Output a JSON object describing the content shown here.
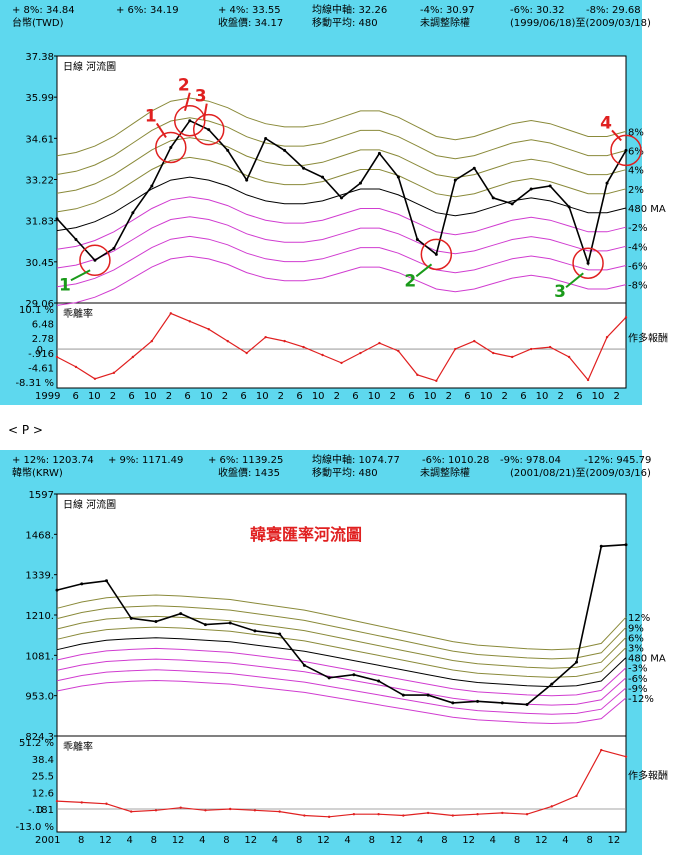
{
  "separator": "< P >",
  "charts": [
    {
      "header_row1": [
        {
          "label": "+ 8%:",
          "value": "34.84"
        },
        {
          "label": "+ 6%:",
          "value": "34.19"
        },
        {
          "label": "+ 4%:",
          "value": "33.55"
        },
        {
          "label": "均線中軸:",
          "value": "32.26"
        },
        {
          "label": "-4%:",
          "value": "30.97"
        },
        {
          "label": "-6%:",
          "value": "30.32"
        },
        {
          "label": "-8%:",
          "value": "29.68"
        }
      ],
      "header_row2": {
        "currency": "台幣(TWD)",
        "close_label": "收盤價:",
        "close_value": "34.17",
        "ma_label": "移動平均:",
        "ma_value": "480",
        "adjust": "未調整除權",
        "period": "(1999/06/18)至(2009/03/18)"
      },
      "panel_label": "日線 河流圖",
      "title": "",
      "ratio_label": "乖離率",
      "right_label": "作多報酬",
      "y_ticks": [
        "37.38",
        "35.99",
        "34.61",
        "33.22",
        "31.83",
        "30.45",
        "29.06"
      ],
      "ratio_ticks": [
        "10.1 %",
        "6.48",
        "2.78",
        "-.916",
        "-4.61",
        "-8.31 %"
      ],
      "zero_tick": "0",
      "x_ticks": [
        "1999",
        "6",
        "10",
        "2",
        "6",
        "10",
        "2",
        "6",
        "10",
        "2",
        "6",
        "10",
        "2",
        "6",
        "10",
        "2",
        "6",
        "10",
        "2",
        "6",
        "10",
        "2",
        "6",
        "10",
        "2",
        "6",
        "10",
        "2",
        "6",
        "10",
        "2"
      ],
      "band_labels": [
        "8%",
        "6%",
        "4%",
        "2%",
        "480 MA",
        "-2%",
        "-4%",
        "-6%",
        "-8%"
      ],
      "annotations": [
        {
          "text": "1",
          "color": "#e02020"
        },
        {
          "text": "2",
          "color": "#e02020"
        },
        {
          "text": "3",
          "color": "#e02020"
        },
        {
          "text": "4",
          "color": "#e02020"
        },
        {
          "text": "1",
          "color": "#1a9a1a"
        },
        {
          "text": "2",
          "color": "#1a9a1a"
        },
        {
          "text": "3",
          "color": "#1a9a1a"
        }
      ],
      "chart_data": {
        "type": "line",
        "title": "",
        "series": [
          {
            "name": "收盤價",
            "x": [
              "1999/06",
              "1999/10",
              "2000/02",
              "2000/06",
              "2000/10",
              "2001/02",
              "2001/06",
              "2001/10",
              "2002/02",
              "2002/06",
              "2002/10",
              "2003/02",
              "2003/06",
              "2003/10",
              "2004/02",
              "2004/06",
              "2004/10",
              "2005/02",
              "2005/06",
              "2005/10",
              "2006/02",
              "2006/06",
              "2006/10",
              "2007/02",
              "2007/06",
              "2007/10",
              "2008/02",
              "2008/06",
              "2008/10",
              "2009/02",
              "2009/03"
            ],
            "values": [
              31.9,
              31.2,
              30.5,
              30.9,
              32.1,
              33.0,
              34.3,
              35.2,
              34.9,
              34.2,
              33.2,
              34.6,
              34.2,
              33.6,
              33.3,
              32.6,
              33.1,
              34.1,
              33.3,
              31.2,
              30.7,
              33.2,
              33.6,
              32.6,
              32.4,
              32.9,
              33.0,
              32.3,
              30.4,
              33.1,
              34.2
            ]
          },
          {
            "name": "乖離率",
            "values": [
              -2.0,
              -4.5,
              -7.5,
              -6.0,
              -2.0,
              2.0,
              9.0,
              7.0,
              5.0,
              2.0,
              -1.0,
              3.0,
              2.0,
              0.5,
              -1.5,
              -3.5,
              -1.0,
              1.5,
              -0.5,
              -6.5,
              -8.0,
              0.0,
              2.0,
              -1.0,
              -2.0,
              0.0,
              0.5,
              -2.0,
              -7.8,
              3.0,
              8.0
            ]
          }
        ],
        "ylim": [
          29.06,
          37.38
        ],
        "ratio_ylim": [
          -8.31,
          10.1
        ]
      }
    },
    {
      "header_row1": [
        {
          "label": "+ 12%:",
          "value": "1203.74"
        },
        {
          "label": "+ 9%:",
          "value": "1171.49"
        },
        {
          "label": "+ 6%:",
          "value": "1139.25"
        },
        {
          "label": "均線中軸:",
          "value": "1074.77"
        },
        {
          "label": "-6%:",
          "value": "1010.28"
        },
        {
          "label": "-9%:",
          "value": "978.04"
        },
        {
          "label": "-12%:",
          "value": "945.79"
        }
      ],
      "header_row2": {
        "currency": "韓幣(KRW)",
        "close_label": "收盤價:",
        "close_value": "1435",
        "ma_label": "移動平均:",
        "ma_value": "480",
        "adjust": "未調整除權",
        "period": "(2001/08/21)至(2009/03/16)"
      },
      "panel_label": "日線 河流圖",
      "title": "韓寰匯率河流圖",
      "ratio_label": "乖離率",
      "right_label": "作多報酬",
      "y_ticks": [
        "1597",
        "1468.",
        "1339.",
        "1210.",
        "1081.",
        "953.0",
        "824.3"
      ],
      "ratio_ticks": [
        "51.2 %",
        "38.4",
        "25.5",
        "12.6",
        "-.181",
        "-13.0 %"
      ],
      "zero_tick": "0",
      "x_ticks": [
        "2001",
        "8",
        "12",
        "4",
        "8",
        "12",
        "4",
        "8",
        "12",
        "4",
        "8",
        "12",
        "4",
        "8",
        "12",
        "4",
        "8",
        "12",
        "4",
        "8",
        "12",
        "4",
        "8",
        "12"
      ],
      "band_labels": [
        "12%",
        "9%",
        "6%",
        "3%",
        "480 MA",
        "-3%",
        "-6%",
        "-9%",
        "-12%"
      ],
      "annotations": [],
      "chart_data": {
        "type": "line",
        "title": "韓寰匯率河流圖",
        "series": [
          {
            "name": "收盤價",
            "x": [
              "2001/08",
              "2001/12",
              "2002/04",
              "2002/08",
              "2002/12",
              "2003/04",
              "2003/08",
              "2003/12",
              "2004/04",
              "2004/08",
              "2004/12",
              "2005/04",
              "2005/08",
              "2005/12",
              "2006/04",
              "2006/08",
              "2006/12",
              "2007/04",
              "2007/08",
              "2007/12",
              "2008/04",
              "2008/08",
              "2008/12",
              "2009/03"
            ],
            "values": [
              1290,
              1310,
              1320,
              1200,
              1190,
              1215,
              1180,
              1185,
              1160,
              1150,
              1050,
              1010,
              1020,
              1000,
              955,
              955,
              930,
              935,
              930,
              925,
              990,
              1060,
              1430,
              1435
            ]
          },
          {
            "name": "乖離率",
            "values": [
              6,
              5,
              4,
              -2,
              -1,
              1,
              -1,
              0,
              -1,
              -2,
              -5,
              -6,
              -4,
              -4,
              -5,
              -3,
              -5,
              -4,
              -3,
              -4,
              2,
              10,
              45,
              40
            ]
          }
        ],
        "ylim": [
          824.3,
          1597
        ],
        "ratio_ylim": [
          -13.0,
          51.2
        ]
      }
    }
  ]
}
